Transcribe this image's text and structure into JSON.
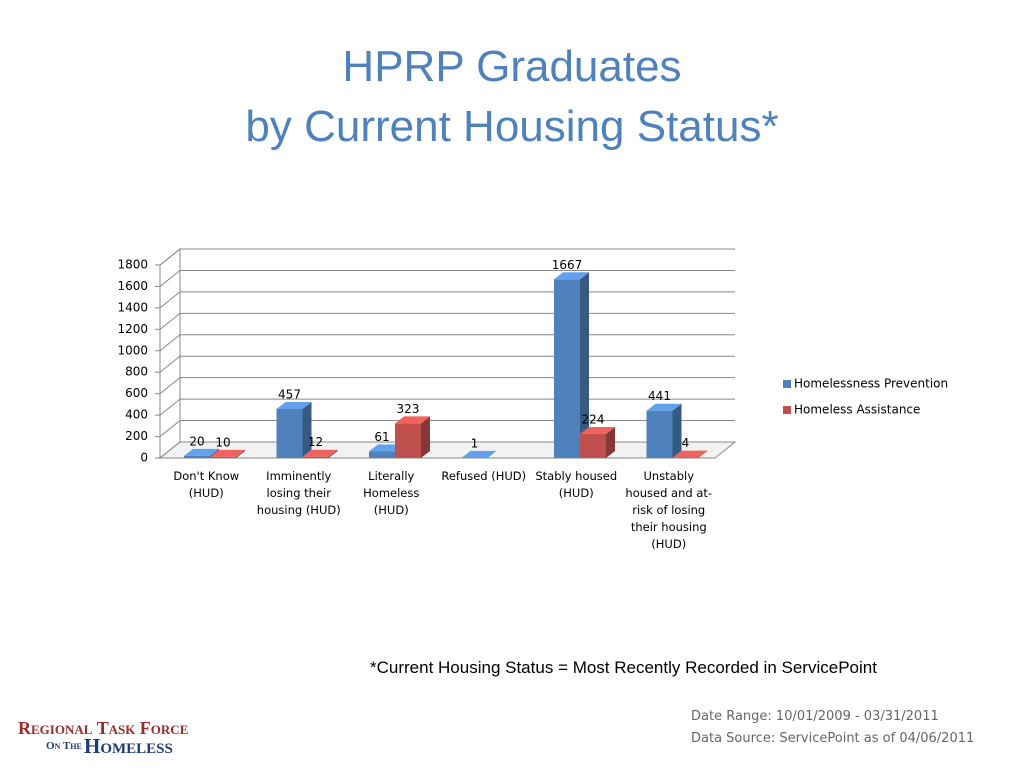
{
  "chart_data": {
    "type": "bar3d",
    "title": "HPRP Graduates",
    "subtitle": "by Current Housing Status*",
    "categories": [
      "Don't Know (HUD)",
      "Imminently losing their housing (HUD)",
      "Literally Homeless (HUD)",
      "Refused (HUD)",
      "Stably housed (HUD)",
      "Unstably housed and at-risk of losing their housing (HUD)"
    ],
    "series": [
      {
        "name": "Homelessness Prevention",
        "color": "#4f81bd",
        "values": [
          20,
          457,
          61,
          1,
          1667,
          441
        ]
      },
      {
        "name": "Homeless Assistance",
        "color": "#c0504d",
        "values": [
          10,
          12,
          323,
          null,
          224,
          4
        ]
      }
    ],
    "ylim": [
      0,
      1800
    ],
    "yticks": [
      0,
      200,
      400,
      600,
      800,
      1000,
      1200,
      1400,
      1600,
      1800
    ],
    "grid": true,
    "legend": "right"
  },
  "footnote": "*Current Housing Status = Most Recently Recorded in ServicePoint",
  "date_range": "Date Range: 10/01/2009 - 03/31/2011",
  "data_source": "Data Source: ServicePoint as of 04/06/2011",
  "logo": {
    "line1": "Regional Task Force",
    "line2": "On The",
    "line3": "Homeless"
  }
}
